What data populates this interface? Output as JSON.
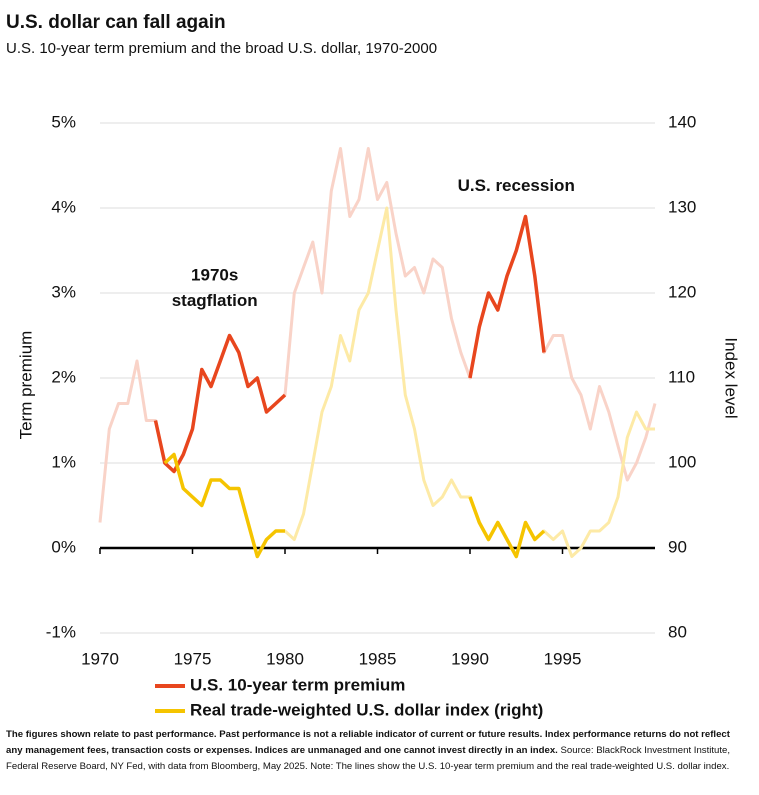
{
  "chart_data": {
    "type": "line",
    "title": "U.S. dollar can fall again",
    "subtitle": "U.S. 10-year term premium and the broad U.S. dollar, 1970-2000",
    "ylabel": "Term premium",
    "y2label": "Index level",
    "annotations": [
      {
        "text": "1970s",
        "x": 1976.2,
        "y": 3.2
      },
      {
        "text": "stagflation",
        "x": 1976.2,
        "y": 2.9
      },
      {
        "text": "U.S. recession",
        "x": 1992.5,
        "y": 4.25
      }
    ],
    "highlight": [
      [
        1973,
        1980
      ],
      [
        1990,
        1994
      ]
    ],
    "x": [
      1970,
      1970.5,
      1971,
      1971.5,
      1972,
      1972.5,
      1973,
      1973.5,
      1974,
      1974.5,
      1975,
      1975.5,
      1976,
      1976.5,
      1977,
      1977.5,
      1978,
      1978.5,
      1979,
      1979.5,
      1980,
      1980.5,
      1981,
      1981.5,
      1982,
      1982.5,
      1983,
      1983.5,
      1984,
      1984.5,
      1985,
      1985.5,
      1986,
      1986.5,
      1987,
      1987.5,
      1988,
      1988.5,
      1989,
      1989.5,
      1990,
      1990.5,
      1991,
      1991.5,
      1992,
      1992.5,
      1993,
      1993.5,
      1994,
      1994.5,
      1995,
      1995.5,
      1996,
      1996.5,
      1997,
      1997.5,
      1998,
      1998.5,
      1999,
      1999.5,
      2000
    ],
    "xlim": [
      1970,
      2000
    ],
    "xticks": [
      1970,
      1975,
      1980,
      1985,
      1990,
      1995
    ],
    "ylim": [
      -1,
      5
    ],
    "yticks": [
      {
        "value": 5,
        "label": "5%"
      },
      {
        "value": 4,
        "label": "4%"
      },
      {
        "value": 3,
        "label": "3%"
      },
      {
        "value": 2,
        "label": "2%"
      },
      {
        "value": 1,
        "label": "1%"
      },
      {
        "value": 0,
        "label": "0%"
      },
      {
        "value": -1,
        "label": "-1%"
      }
    ],
    "y2lim": [
      80,
      140
    ],
    "y2ticks": [
      140,
      130,
      120,
      110,
      100,
      90,
      80
    ],
    "grid": true,
    "series": [
      {
        "name": "U.S. 10-year term premium",
        "color": "#e8461e",
        "faded_color": "#f9d3c8",
        "values": [
          0.3,
          1.4,
          1.7,
          1.7,
          2.2,
          1.5,
          1.5,
          1.0,
          0.9,
          1.1,
          1.4,
          2.1,
          1.9,
          2.2,
          2.5,
          2.3,
          1.9,
          2.0,
          1.6,
          1.7,
          1.8,
          3.0,
          3.3,
          3.6,
          3.0,
          4.2,
          4.7,
          3.9,
          4.1,
          4.7,
          4.1,
          4.3,
          3.7,
          3.2,
          3.3,
          3.0,
          3.4,
          3.3,
          2.7,
          2.3,
          2.0,
          2.6,
          3.0,
          2.8,
          3.2,
          3.5,
          3.9,
          3.2,
          2.3,
          2.5,
          2.5,
          2.0,
          1.8,
          1.4,
          1.9,
          1.6,
          1.2,
          0.8,
          1.0,
          1.3,
          1.7
        ]
      },
      {
        "name": "Real trade-weighted U.S. dollar index (right)",
        "color": "#f5c400",
        "faded_color": "#fdeaa6",
        "axis": "y2",
        "values": [
          null,
          null,
          null,
          null,
          null,
          null,
          null,
          100,
          101,
          97,
          96,
          95,
          98,
          98,
          97,
          97,
          93,
          89,
          91,
          92,
          92,
          91,
          94,
          100,
          106,
          109,
          115,
          112,
          118,
          120,
          125,
          130,
          118,
          108,
          104,
          98,
          95,
          96,
          98,
          96,
          96,
          93,
          91,
          93,
          91,
          89,
          93,
          91,
          92,
          91,
          92,
          89,
          90,
          92,
          92,
          93,
          96,
          103,
          106,
          104,
          104
        ]
      }
    ],
    "note_bold": "The figures shown relate to past performance. Past performance is not a reliable indicator of current or future results. Index performance returns do not reflect any management fees, transaction costs or expenses. Indices are unmanaged and one cannot invest directly in an index.",
    "source": "Source: BlackRock Investment Institute, Federal Reserve Board, NY Fed, with data from Bloomberg, May 2025. Note: The lines show the U.S. 10-year term premium and the real trade-weighted U.S. dollar index."
  }
}
